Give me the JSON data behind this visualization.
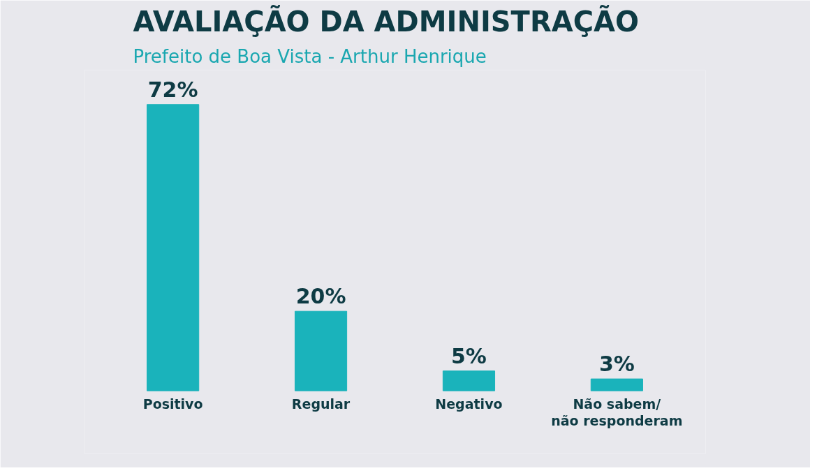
{
  "chart_data": {
    "type": "bar",
    "title": "AVALIAÇÃO DA ADMINISTRAÇÃO",
    "subtitle": "Prefeito de Boa Vista - Arthur Henrique",
    "categories": [
      "Positivo",
      "Regular",
      "Negativo",
      "Não sabem/\nnão responderam"
    ],
    "values": [
      72,
      20,
      5,
      3
    ],
    "color": "#1ab3bb",
    "value_labels": [
      "72%",
      "20%",
      "5%",
      "3%"
    ],
    "grid": false
  }
}
